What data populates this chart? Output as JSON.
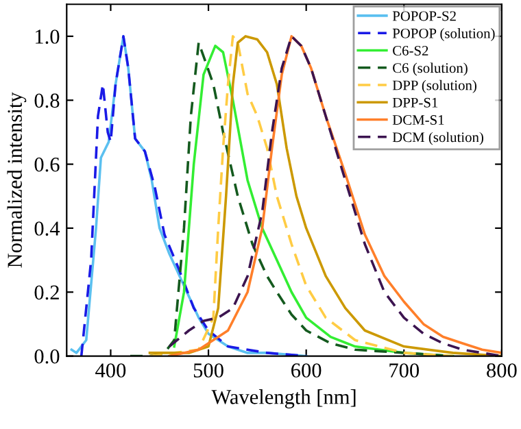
{
  "chart_data": {
    "type": "line",
    "xlabel": "Wavelength [nm]",
    "ylabel": "Normalized intensity",
    "xlim": [
      355,
      800
    ],
    "ylim": [
      0,
      1.1
    ],
    "xticks": [
      400,
      500,
      600,
      700,
      800
    ],
    "yticks": [
      {
        "value": 0,
        "label": "0.0"
      },
      {
        "value": 0.2,
        "label": "0.2"
      },
      {
        "value": 0.4,
        "label": "0.4"
      },
      {
        "value": 0.6,
        "label": "0.6"
      },
      {
        "value": 0.8,
        "label": "0.8"
      },
      {
        "value": 1,
        "label": "1.0"
      }
    ],
    "grid": false,
    "legend": "top right",
    "marker": "none",
    "series": [
      {
        "name": "POPOP-S2",
        "color": "#5bc0f0",
        "line_style": "solid",
        "x": [
          360,
          365,
          375,
          385,
          390,
          398,
          405,
          413,
          418,
          425,
          435,
          442,
          450,
          460,
          475,
          490,
          500,
          520,
          540,
          560,
          600
        ],
        "values": [
          0.02,
          0.01,
          0.05,
          0.4,
          0.62,
          0.67,
          0.85,
          1.0,
          0.9,
          0.68,
          0.64,
          0.55,
          0.4,
          0.32,
          0.22,
          0.12,
          0.07,
          0.03,
          0.01,
          0.01,
          0.0
        ]
      },
      {
        "name": "POPOP (solution)",
        "color": "#1a1ae6",
        "line_style": "dashed",
        "x": [
          370,
          380,
          387,
          392,
          397,
          400,
          405,
          413,
          418,
          425,
          435,
          445,
          455,
          470,
          485,
          500,
          520,
          560,
          600
        ],
        "values": [
          0.0,
          0.3,
          0.75,
          0.85,
          0.7,
          0.67,
          0.85,
          1.0,
          0.9,
          0.68,
          0.64,
          0.53,
          0.38,
          0.27,
          0.15,
          0.08,
          0.03,
          0.01,
          0.0
        ]
      },
      {
        "name": "C6-S2",
        "color": "#33ee33",
        "line_style": "solid",
        "x": [
          465,
          475,
          485,
          495,
          507,
          515,
          525,
          540,
          555,
          570,
          585,
          600,
          625,
          650,
          700,
          750
        ],
        "values": [
          0.03,
          0.2,
          0.6,
          0.88,
          0.97,
          0.95,
          0.8,
          0.55,
          0.4,
          0.3,
          0.2,
          0.12,
          0.06,
          0.03,
          0.01,
          0.0
        ]
      },
      {
        "name": "C6 (solution)",
        "color": "#145a1e",
        "line_style": "dashed",
        "x": [
          420,
          440,
          455,
          465,
          475,
          482,
          490,
          497,
          505,
          515,
          530,
          545,
          560,
          570,
          585,
          600,
          625,
          650,
          700,
          750
        ],
        "values": [
          0.0,
          0.0,
          0.01,
          0.05,
          0.4,
          0.75,
          0.98,
          0.92,
          0.85,
          0.7,
          0.5,
          0.35,
          0.25,
          0.2,
          0.13,
          0.08,
          0.04,
          0.02,
          0.01,
          0.0
        ]
      },
      {
        "name": "DPP (solution)",
        "color": "#ffcc44",
        "line_style": "dashed",
        "x": [
          440,
          490,
          505,
          510,
          515,
          520,
          525,
          530,
          540,
          550,
          560,
          570,
          585,
          600,
          620,
          650,
          700,
          750
        ],
        "values": [
          0.0,
          0.02,
          0.12,
          0.4,
          0.65,
          0.85,
          1.0,
          0.98,
          0.82,
          0.75,
          0.65,
          0.5,
          0.35,
          0.22,
          0.12,
          0.05,
          0.01,
          0.0
        ]
      },
      {
        "name": "DPP-S1",
        "color": "#cc9900",
        "line_style": "solid",
        "x": [
          440,
          480,
          500,
          510,
          518,
          525,
          530,
          538,
          550,
          560,
          570,
          580,
          590,
          600,
          620,
          640,
          660,
          700,
          750,
          800
        ],
        "values": [
          0.01,
          0.01,
          0.03,
          0.15,
          0.5,
          0.85,
          0.98,
          1.0,
          0.99,
          0.95,
          0.85,
          0.65,
          0.5,
          0.4,
          0.25,
          0.15,
          0.08,
          0.03,
          0.01,
          0.0
        ]
      },
      {
        "name": "DCM-S1",
        "color": "#ff7f2a",
        "line_style": "solid",
        "x": [
          460,
          490,
          520,
          540,
          555,
          565,
          575,
          585,
          595,
          605,
          620,
          640,
          660,
          680,
          700,
          720,
          740,
          760,
          780,
          800
        ],
        "values": [
          0.0,
          0.02,
          0.08,
          0.2,
          0.4,
          0.65,
          0.88,
          1.0,
          0.97,
          0.9,
          0.75,
          0.57,
          0.38,
          0.25,
          0.17,
          0.1,
          0.06,
          0.04,
          0.02,
          0.01
        ]
      },
      {
        "name": "DCM (solution)",
        "color": "#3c1450",
        "line_style": "dashed",
        "x": [
          460,
          480,
          495,
          510,
          525,
          540,
          555,
          565,
          575,
          585,
          595,
          605,
          620,
          640,
          660,
          680,
          700,
          720,
          740,
          760,
          800
        ],
        "values": [
          0.03,
          0.08,
          0.11,
          0.12,
          0.15,
          0.25,
          0.45,
          0.7,
          0.9,
          1.0,
          0.97,
          0.9,
          0.75,
          0.55,
          0.35,
          0.2,
          0.12,
          0.07,
          0.04,
          0.02,
          0.0
        ]
      }
    ]
  }
}
